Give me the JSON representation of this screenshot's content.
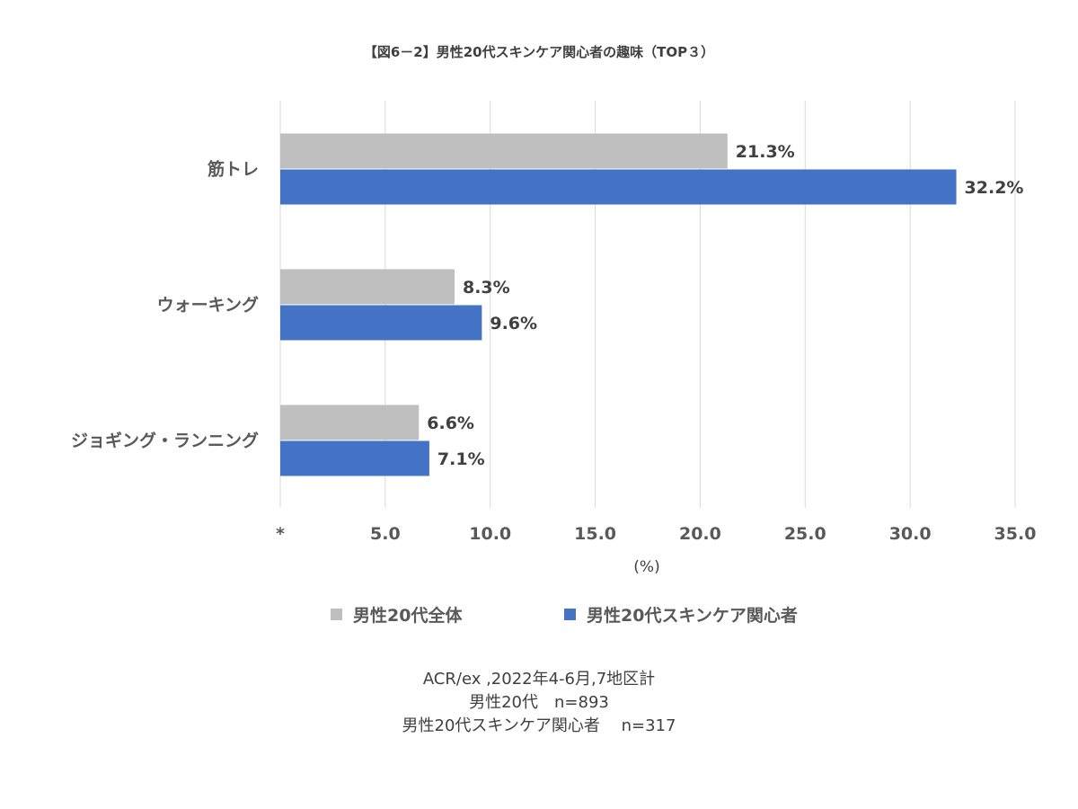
{
  "chart_data": {
    "type": "bar",
    "orientation": "horizontal",
    "title": "【図6－2】男性20代スキンケア関心者の趣味（TOP３）",
    "categories": [
      "筋トレ",
      "ウォーキング",
      "ジョギング・ランニング"
    ],
    "series": [
      {
        "name": "男性20代全体",
        "values": [
          21.3,
          8.3,
          6.6
        ],
        "color": "#bfbfbf"
      },
      {
        "name": "男性20代スキンケア関心者",
        "values": [
          32.2,
          9.6,
          7.1
        ],
        "color": "#4472c4"
      }
    ],
    "data_labels": [
      [
        "21.3%",
        "8.3%",
        "6.6%"
      ],
      [
        "32.2%",
        "9.6%",
        "7.1%"
      ]
    ],
    "xlim": [
      0,
      35
    ],
    "x_ticks": [
      0,
      5,
      10,
      15,
      20,
      25,
      30,
      35
    ],
    "x_tick_labels": [
      "*",
      "5.0",
      "10.0",
      "15.0",
      "20.0",
      "25.0",
      "30.0",
      "35.0"
    ],
    "xlabel": "(%)",
    "ylabel": "",
    "grid": "vertical",
    "legend_position": "bottom",
    "gridline_color": "#d9d9d9"
  },
  "footnote": {
    "lines": [
      "ACR/ex ,2022年4-6月,7地区計",
      "男性20代　n=893",
      "男性20代スキンケア関心者　 n=317"
    ]
  }
}
